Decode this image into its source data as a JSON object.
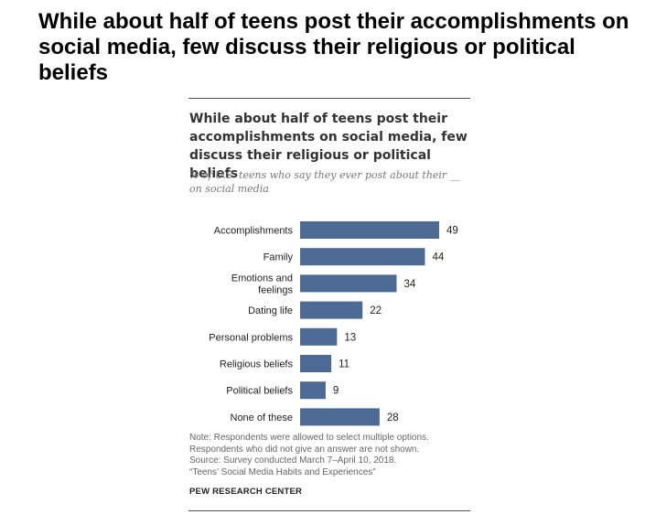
{
  "headline": "While about half of teens post their accomplishments on social media, few discuss their religious or political beliefs",
  "chart_data": {
    "type": "bar",
    "orientation": "horizontal",
    "title": "While about half of teens post their accomplishments on social media, few discuss their religious or political beliefs",
    "subtitle": "% of U.S. teens who say they ever post about their __ on social media",
    "categories": [
      [
        "Accomplishments"
      ],
      [
        "Family"
      ],
      [
        "Emotions and",
        "feelings"
      ],
      [
        "Dating life"
      ],
      [
        "Personal problems"
      ],
      [
        "Religious beliefs"
      ],
      [
        "Political beliefs"
      ],
      [
        "None of these"
      ]
    ],
    "values": [
      49,
      44,
      34,
      22,
      13,
      11,
      9,
      28
    ],
    "xlabel": "",
    "ylabel": "",
    "xlim": [
      0,
      100
    ],
    "grid": false,
    "bar_color": "#4d6a94"
  },
  "notes": [
    "Note: Respondents were allowed to select multiple options.",
    "Respondents who did not give an answer are not shown.",
    "Source: Survey conducted March 7–April 10, 2018.",
    "“Teens’ Social Media Habits and Experiences”"
  ],
  "source_brand": "PEW RESEARCH CENTER"
}
